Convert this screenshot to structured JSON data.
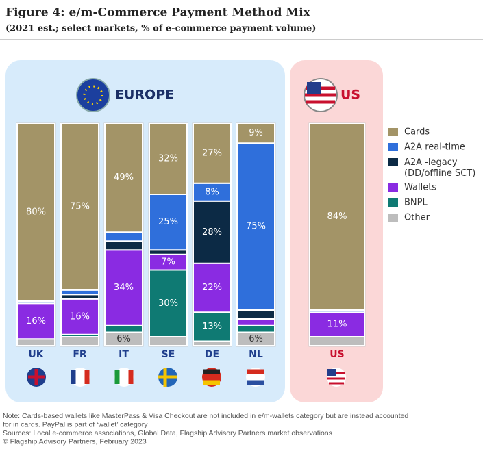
{
  "chart_data": {
    "type": "bar",
    "stacked": true,
    "title": "Figure 4: e/m-Commerce Payment Method Mix",
    "subtitle": "(2021 est.; select markets, % of e-commerce  payment volume)",
    "regions": [
      "EUROPE",
      "US"
    ],
    "categories": [
      "UK",
      "FR",
      "IT",
      "SE",
      "DE",
      "NL",
      "US"
    ],
    "ylim": [
      0,
      100
    ],
    "series": [
      {
        "name": "Cards",
        "color": "#a39467",
        "values": [
          80,
          75,
          49,
          32,
          27,
          9,
          84
        ],
        "value_labels": [
          "80%",
          "75%",
          "49%",
          "32%",
          "27%",
          "9%",
          "84%"
        ]
      },
      {
        "name": "A2A real-time",
        "color": "#2f6fdb",
        "values": [
          1,
          2,
          4,
          25,
          8,
          75,
          1
        ],
        "value_labels": [
          null,
          null,
          null,
          "25%",
          "8%",
          "75%",
          null
        ]
      },
      {
        "name": "A2A -legacy (DD/offline SCT)",
        "color": "#0c2a45",
        "values": [
          0,
          2,
          4,
          2,
          28,
          4,
          0
        ],
        "value_labels": [
          null,
          null,
          null,
          null,
          "28%",
          null,
          null
        ]
      },
      {
        "name": "Wallets",
        "color": "#8a2be2",
        "values": [
          16,
          16,
          34,
          7,
          22,
          3,
          11
        ],
        "value_labels": [
          "16%",
          "16%",
          "34%",
          "7%",
          "22%",
          null,
          "11%"
        ]
      },
      {
        "name": "BNPL",
        "color": "#0f7a73",
        "values": [
          0,
          1,
          3,
          30,
          13,
          3,
          0
        ],
        "value_labels": [
          null,
          null,
          null,
          "30%",
          "13%",
          null,
          null
        ]
      },
      {
        "name": "Other",
        "color": "#bdbdbd",
        "values": [
          3,
          4,
          6,
          4,
          2,
          6,
          4
        ],
        "value_labels": [
          null,
          null,
          "6%",
          null,
          null,
          "6%",
          null
        ]
      }
    ],
    "notes": [
      "Note: Cards-based wallets like MasterPass & Visa Checkout are not included in e/m-wallets category but are instead accounted",
      "for in cards. PayPal is part of ‘wallet’ category",
      "Sources: Local e-commerce associations,  Global Data, Flagship Advisory Partners market observations",
      "© Flagship Advisory Partners, February 2023"
    ]
  }
}
